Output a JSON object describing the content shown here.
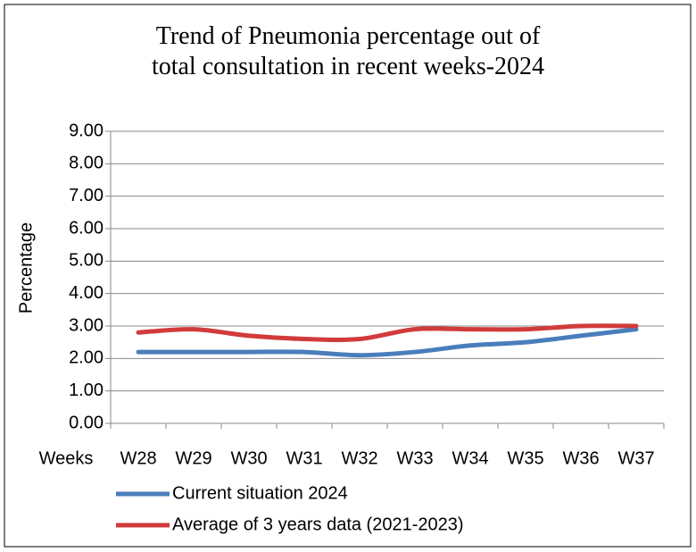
{
  "chart_data": {
    "type": "line",
    "title": "Trend of Pneumonia percentage out of total consultation in recent weeks-2024",
    "xlabel": "Weeks",
    "ylabel": "Percentage",
    "categories": [
      "W28",
      "W29",
      "W30",
      "W31",
      "W32",
      "W33",
      "W34",
      "W35",
      "W36",
      "W37"
    ],
    "series": [
      {
        "name": "Current situation 2024",
        "color": "#4a7ebb",
        "values": [
          2.2,
          2.2,
          2.2,
          2.2,
          2.1,
          2.2,
          2.4,
          2.5,
          2.7,
          2.9
        ]
      },
      {
        "name": "Average of 3 years data (2021-2023)",
        "color": "#d13b3b",
        "values": [
          2.8,
          2.9,
          2.7,
          2.6,
          2.6,
          2.9,
          2.9,
          2.9,
          3.0,
          3.0
        ]
      }
    ],
    "ylim": [
      0,
      9
    ],
    "yticks": [
      {
        "value": 0,
        "label": "0.00"
      },
      {
        "value": 1,
        "label": "1.00"
      },
      {
        "value": 2,
        "label": "2.00"
      },
      {
        "value": 3,
        "label": "3.00"
      },
      {
        "value": 4,
        "label": "4.00"
      },
      {
        "value": 5,
        "label": "5.00"
      },
      {
        "value": 6,
        "label": "6.00"
      },
      {
        "value": 7,
        "label": "7.00"
      },
      {
        "value": 8,
        "label": "8.00"
      },
      {
        "value": 9,
        "label": "9.00"
      }
    ],
    "grid": true,
    "smooth": true,
    "legend": "bottom"
  }
}
